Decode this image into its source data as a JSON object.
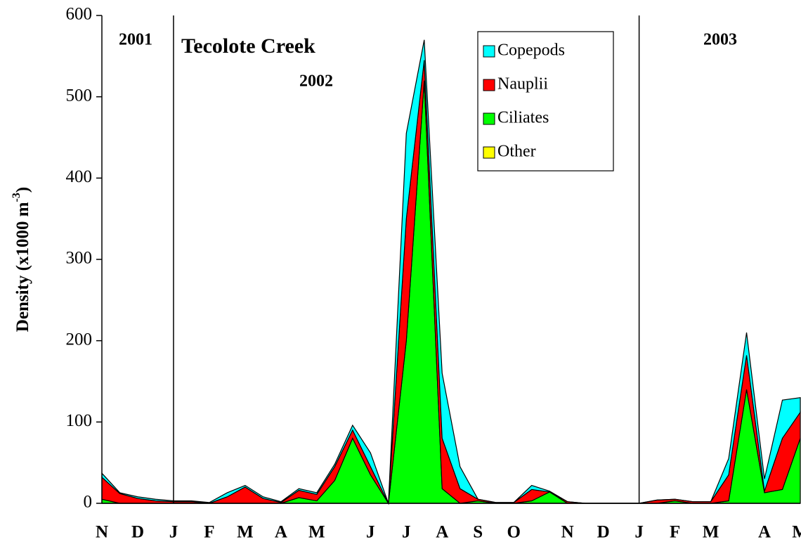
{
  "chart_data": {
    "type": "stacked-area",
    "title": "Tecolote Creek",
    "annotations": [
      "2001",
      "2002",
      "2003"
    ],
    "y_label": {
      "text": "Density (x1000 m",
      "sup": "-3",
      "end": ")"
    },
    "categories": [
      "N",
      null,
      "D",
      null,
      "J",
      null,
      "F",
      null,
      "M",
      null,
      "A",
      null,
      "M",
      null,
      null,
      "J",
      null,
      "J",
      null,
      "A",
      null,
      "S",
      null,
      "O",
      null,
      null,
      "N",
      null,
      "D",
      null,
      "J",
      null,
      "F",
      null,
      "M",
      null,
      null,
      "A",
      null,
      "M"
    ],
    "year_dividers": [
      4,
      30
    ],
    "series": [
      {
        "name": "Copepods",
        "color": "#00ffff",
        "values": [
          5,
          1,
          2,
          2,
          1,
          1,
          1,
          5,
          2,
          2,
          1,
          2,
          2,
          3,
          6,
          17,
          0,
          105,
          25,
          80,
          27,
          0,
          0,
          0,
          5,
          1,
          0,
          0,
          0,
          0,
          0,
          0,
          0,
          0,
          0,
          20,
          28,
          15,
          47,
          18
        ]
      },
      {
        "name": "Nauplii",
        "color": "#ff0000",
        "values": [
          27,
          12,
          6,
          3,
          2,
          2,
          0,
          8,
          20,
          6,
          1,
          9,
          8,
          17,
          10,
          10,
          0,
          150,
          25,
          62,
          18,
          2,
          1,
          1,
          14,
          0,
          2,
          0,
          0,
          0,
          0,
          4,
          2,
          2,
          2,
          32,
          42,
          2,
          63,
          32
        ]
      },
      {
        "name": "Ciliates",
        "color": "#00ff00",
        "values": [
          5,
          0,
          0,
          0,
          0,
          0,
          0,
          0,
          0,
          0,
          0,
          7,
          3,
          28,
          80,
          35,
          0,
          200,
          520,
          18,
          0,
          3,
          0,
          0,
          3,
          14,
          0,
          0,
          0,
          0,
          0,
          0,
          3,
          0,
          0,
          3,
          140,
          13,
          17,
          80
        ]
      },
      {
        "name": "Other",
        "color": "#ffff00",
        "values": [
          0,
          0,
          0,
          0,
          0,
          0,
          0,
          0,
          0,
          0,
          0,
          0,
          0,
          0,
          0,
          0,
          0,
          0,
          0,
          0,
          0,
          0,
          0,
          0,
          0,
          0,
          0,
          0,
          0,
          0,
          0,
          0,
          0,
          0,
          0,
          0,
          0,
          0,
          0,
          0
        ]
      }
    ],
    "ylim": [
      0,
      600
    ],
    "yticks": [
      0,
      100,
      200,
      300,
      400,
      500,
      600
    ],
    "legend": "top-right"
  }
}
